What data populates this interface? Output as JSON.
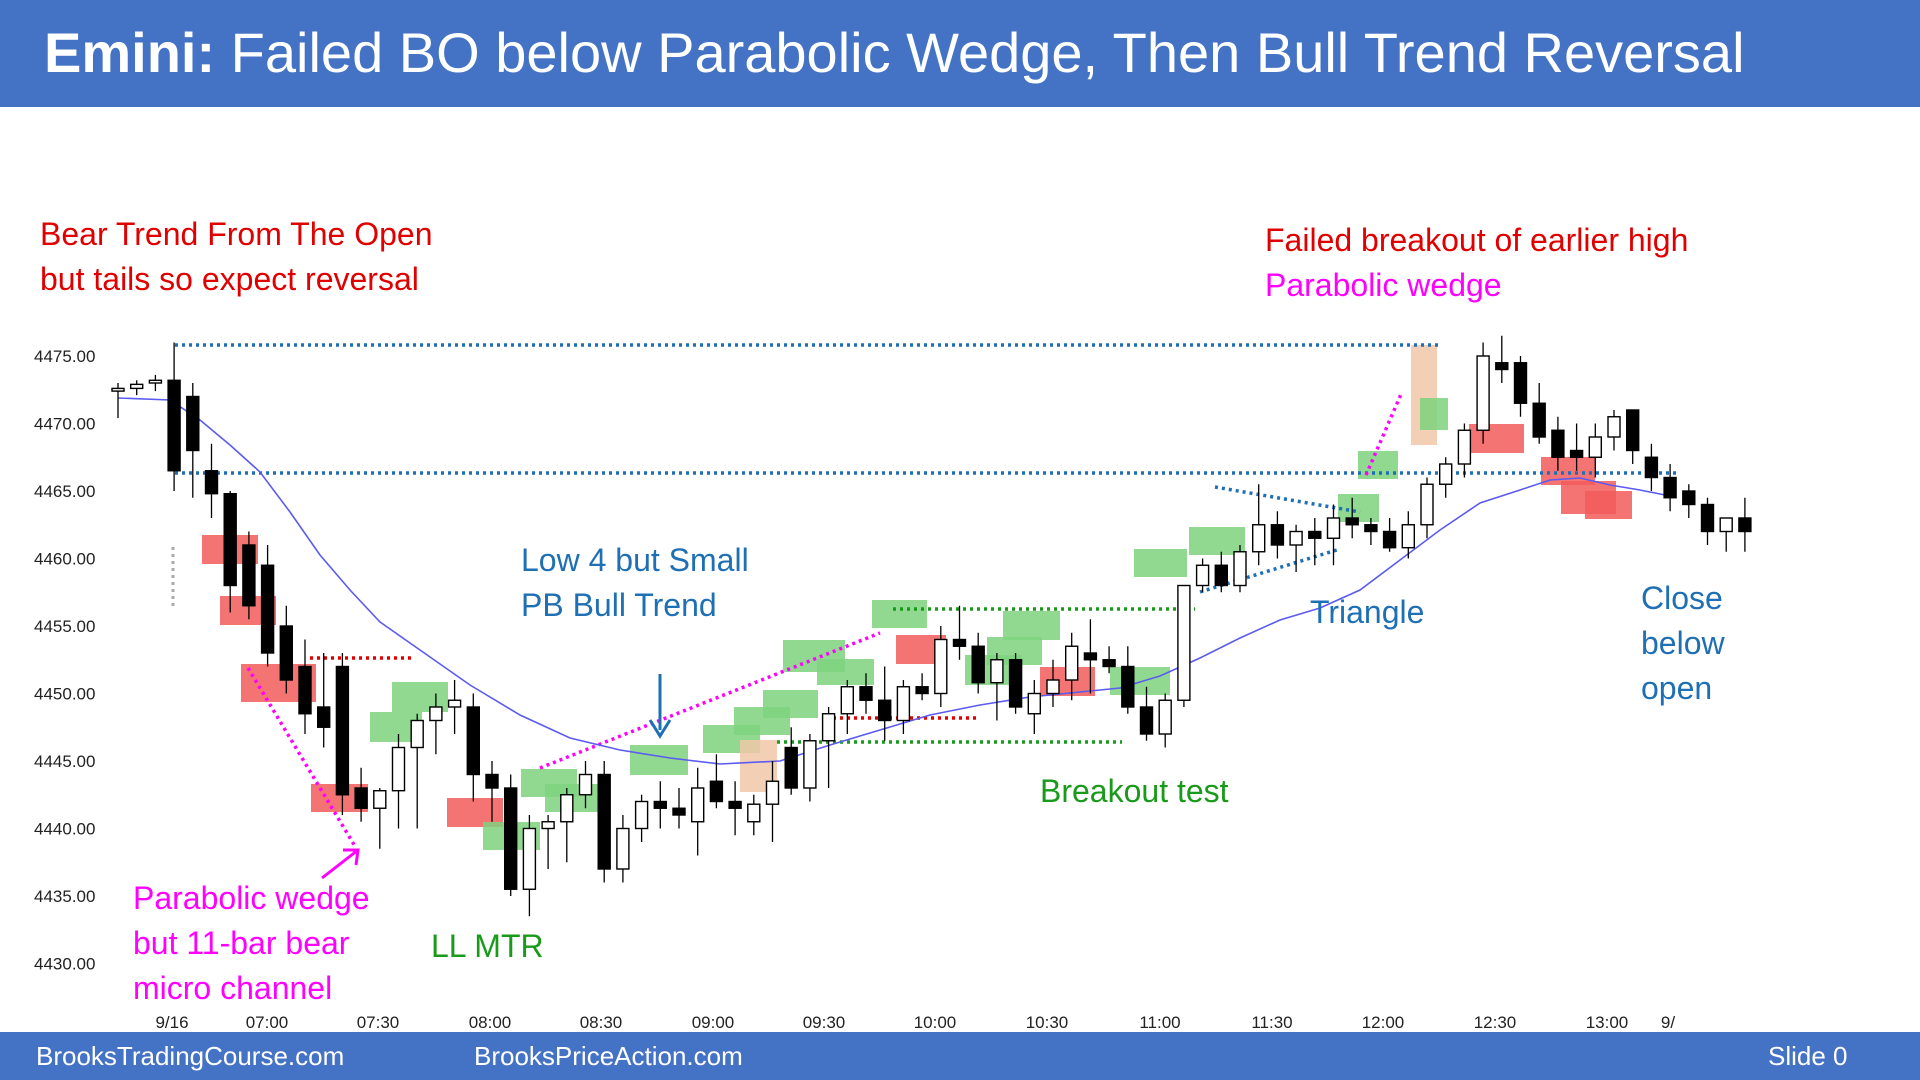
{
  "header": {
    "title_bold": "Emini:",
    "title_rest": " Failed BO below Parabolic Wedge, Then Bull Trend Reversal"
  },
  "footer": {
    "left": "BrooksTradingCourse.com",
    "center": "BrooksPriceAction.com",
    "slide": "Slide  0"
  },
  "colors": {
    "header_bg": "#4472c4",
    "bull_box": "#7ed27e",
    "bear_box": "#f25a5a",
    "tan_box": "#f0c7a8",
    "ema": "#5b5bf0"
  },
  "annotations": {
    "bear_trend_1": "Bear Trend From The Open",
    "bear_trend_2": "but tails so expect reversal",
    "failed_bo": "Failed breakout of earlier high",
    "parabolic_wedge_top": "Parabolic wedge",
    "low4_1": "Low 4 but Small",
    "low4_2": "PB Bull Trend",
    "triangle": "Triangle",
    "close_1": "Close",
    "close_2": "below",
    "close_3": "open",
    "breakout_test": "Breakout test",
    "ll_mtr": "LL MTR",
    "pw_1": "Parabolic wedge",
    "pw_2": "but 11-bar bear",
    "pw_3": "micro channel"
  },
  "chart_data": {
    "type": "candlestick",
    "y_ticks": [
      "4475.00",
      "4470.00",
      "4465.00",
      "4460.00",
      "4455.00",
      "4450.00",
      "4445.00",
      "4440.00",
      "4435.00",
      "4430.00"
    ],
    "ylim": [
      4430,
      4475
    ],
    "x_ticks": [
      "9/16",
      "07:00",
      "07:30",
      "08:00",
      "08:30",
      "09:00",
      "09:30",
      "10:00",
      "10:30",
      "11:00",
      "11:30",
      "12:00",
      "12:30",
      "13:00",
      "9/"
    ],
    "candles": [
      [
        4472.4,
        4473.0,
        4470.4,
        4472.6
      ],
      [
        4472.6,
        4473.2,
        4472.1,
        4472.9
      ],
      [
        4473.0,
        4473.6,
        4472.4,
        4473.2
      ],
      [
        4473.2,
        4476.0,
        4465.0,
        4466.5
      ],
      [
        4472.0,
        4473.0,
        4464.5,
        4468.0
      ],
      [
        4466.5,
        4468.5,
        4463.0,
        4464.8
      ],
      [
        4464.8,
        4465.0,
        4456.0,
        4458.0
      ],
      [
        4461.0,
        4462.0,
        4455.5,
        4456.5
      ],
      [
        4459.5,
        4461.0,
        4452.0,
        4453.0
      ],
      [
        4455.0,
        4456.5,
        4450.0,
        4451.0
      ],
      [
        4452.0,
        4454.0,
        4447.0,
        4448.5
      ],
      [
        4449.0,
        4453.0,
        4446.0,
        4447.5
      ],
      [
        4452.0,
        4453.0,
        4441.0,
        4442.5
      ],
      [
        4443.0,
        4444.5,
        4440.5,
        4441.5
      ],
      [
        4441.5,
        4443.0,
        4438.5,
        4442.8
      ],
      [
        4442.8,
        4447.0,
        4440.0,
        4446.0
      ],
      [
        4446.0,
        4448.5,
        4440.0,
        4448.0
      ],
      [
        4448.0,
        4450.0,
        4445.5,
        4449.0
      ],
      [
        4449.0,
        4451.0,
        4447.0,
        4449.5
      ],
      [
        4449.0,
        4450.0,
        4442.0,
        4444.0
      ],
      [
        4444.0,
        4445.0,
        4440.5,
        4443.0
      ],
      [
        4443.0,
        4444.0,
        4435.0,
        4435.5
      ],
      [
        4435.5,
        4441.0,
        4433.5,
        4440.0
      ],
      [
        4440.0,
        4441.0,
        4437.0,
        4440.5
      ],
      [
        4440.5,
        4443.0,
        4437.5,
        4442.5
      ],
      [
        4442.5,
        4445.0,
        4441.5,
        4444.0
      ],
      [
        4444.0,
        4445.0,
        4436.0,
        4437.0
      ],
      [
        4437.0,
        4441.0,
        4436.0,
        4440.0
      ],
      [
        4440.0,
        4442.5,
        4439.0,
        4442.0
      ],
      [
        4442.0,
        4443.5,
        4440.0,
        4441.5
      ],
      [
        4441.5,
        4443.0,
        4440.0,
        4441.0
      ],
      [
        4440.5,
        4444.5,
        4438.0,
        4443.0
      ],
      [
        4443.5,
        4445.5,
        4441.5,
        4442.0
      ],
      [
        4442.0,
        4443.5,
        4439.5,
        4441.5
      ],
      [
        4440.5,
        4442.5,
        4439.5,
        4441.8
      ],
      [
        4441.8,
        4445.0,
        4439.0,
        4443.5
      ],
      [
        4446.0,
        4447.5,
        4442.5,
        4443.0
      ],
      [
        4443.0,
        4447.0,
        4442.0,
        4446.5
      ],
      [
        4446.5,
        4449.0,
        4443.0,
        4448.5
      ],
      [
        4448.5,
        4451.0,
        4447.0,
        4450.5
      ],
      [
        4450.5,
        4451.5,
        4448.5,
        4449.5
      ],
      [
        4449.5,
        4452.0,
        4446.5,
        4448.0
      ],
      [
        4448.0,
        4451.0,
        4447.0,
        4450.5
      ],
      [
        4450.5,
        4451.5,
        4449.5,
        4450.0
      ],
      [
        4450.0,
        4455.0,
        4449.0,
        4454.0
      ],
      [
        4454.0,
        4456.5,
        4452.5,
        4453.5
      ],
      [
        4453.5,
        4454.5,
        4450.0,
        4450.8
      ],
      [
        4450.8,
        4453.0,
        4448.0,
        4452.5
      ],
      [
        4452.5,
        4453.0,
        4448.5,
        4449.0
      ],
      [
        4448.5,
        4451.0,
        4447.0,
        4450.0
      ],
      [
        4450.0,
        4452.5,
        4449.0,
        4451.0
      ],
      [
        4451.0,
        4454.5,
        4449.5,
        4453.5
      ],
      [
        4453.0,
        4455.5,
        4450.0,
        4452.5
      ],
      [
        4452.5,
        4453.5,
        4451.5,
        4452.0
      ],
      [
        4452.0,
        4453.5,
        4448.5,
        4449.0
      ],
      [
        4449.0,
        4450.5,
        4446.5,
        4447.0
      ],
      [
        4447.0,
        4450.0,
        4446.0,
        4449.5
      ],
      [
        4449.5,
        4458.0,
        4449.0,
        4458.0
      ],
      [
        4458.0,
        4460.0,
        4457.5,
        4459.5
      ],
      [
        4459.5,
        4460.5,
        4457.5,
        4458.0
      ],
      [
        4458.0,
        4461.0,
        4457.5,
        4460.5
      ],
      [
        4460.5,
        4465.5,
        4459.5,
        4462.5
      ],
      [
        4462.5,
        4463.5,
        4460.0,
        4461.0
      ],
      [
        4461.0,
        4462.5,
        4459.0,
        4462.0
      ],
      [
        4462.0,
        4463.0,
        4459.5,
        4461.5
      ],
      [
        4461.5,
        4464.0,
        4459.5,
        4463.0
      ],
      [
        4463.0,
        4464.5,
        4461.5,
        4462.5
      ],
      [
        4462.5,
        4463.0,
        4461.0,
        4462.0
      ],
      [
        4462.0,
        4463.0,
        4460.5,
        4460.8
      ],
      [
        4460.8,
        4463.5,
        4460.0,
        4462.5
      ],
      [
        4462.5,
        4466.0,
        4461.5,
        4465.5
      ],
      [
        4465.5,
        4467.5,
        4464.5,
        4467.0
      ],
      [
        4467.0,
        4470.0,
        4466.0,
        4469.5
      ],
      [
        4469.5,
        4476.0,
        4468.5,
        4475.0
      ],
      [
        4474.5,
        4476.5,
        4473.0,
        4474.0
      ],
      [
        4474.5,
        4475.0,
        4470.5,
        4471.5
      ],
      [
        4471.5,
        4473.0,
        4468.5,
        4469.0
      ],
      [
        4469.5,
        4470.5,
        4466.5,
        4467.5
      ],
      [
        4468.0,
        4470.0,
        4466.5,
        4467.5
      ],
      [
        4467.5,
        4470.0,
        4466.0,
        4469.0
      ],
      [
        4469.0,
        4471.0,
        4468.0,
        4470.5
      ],
      [
        4471.0,
        4471.0,
        4467.0,
        4468.0
      ],
      [
        4467.5,
        4468.5,
        4465.0,
        4466.0
      ],
      [
        4466.0,
        4467.0,
        4463.5,
        4464.5
      ],
      [
        4465.0,
        4465.5,
        4463.0,
        4464.0
      ],
      [
        4464.0,
        4464.5,
        4461.0,
        4462.0
      ],
      [
        4462.0,
        4463.0,
        4460.5,
        4463.0
      ],
      [
        4463.0,
        4464.5,
        4460.5,
        4462.0
      ]
    ]
  }
}
